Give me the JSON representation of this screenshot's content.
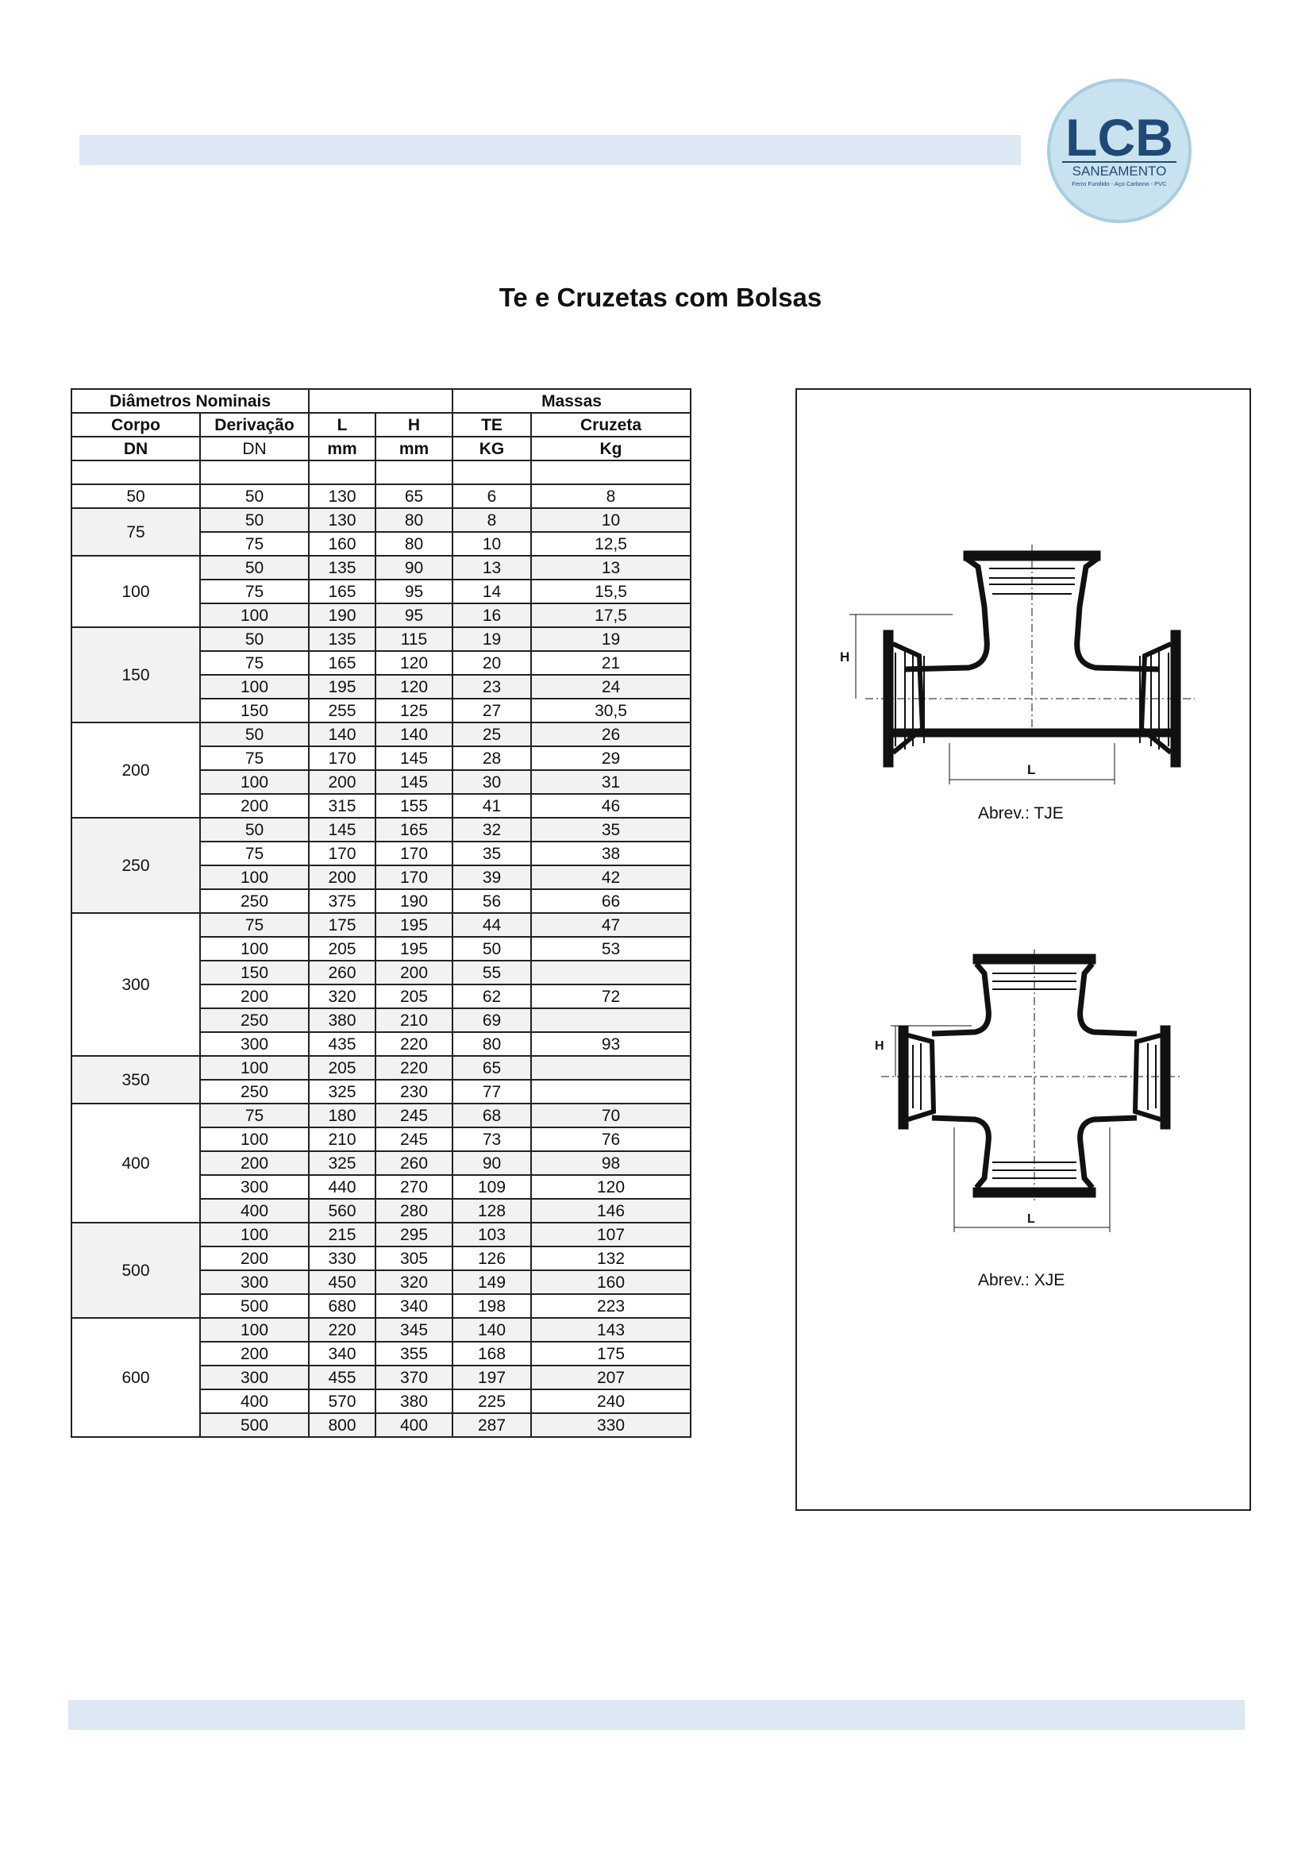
{
  "title": "Te e Cruzetas com Bolsas",
  "logo": {
    "text": "LCB",
    "subtitle": "SANEAMENTO",
    "tagline": "Ferro Fundido - Aço Carbono - PVC",
    "ring_color": "#a9cde0",
    "fill_color": "#c9e2ef",
    "text_color": "#1f4a78"
  },
  "colors": {
    "band": "#dde8f5",
    "row_shade": "#f2f2f2"
  },
  "table": {
    "header_row1": {
      "diametros": "Diâmetros Nominais",
      "massas": "Massas"
    },
    "header_row2": {
      "corpo": "Corpo",
      "derivacao": "Derivação",
      "l": "L",
      "h": "H",
      "te": "TE",
      "cruzeta": "Cruzeta"
    },
    "header_row3": {
      "corpo_unit": "DN",
      "derivacao_unit": "DN",
      "l_unit": "mm",
      "h_unit": "mm",
      "te_unit": "KG",
      "cruzeta_unit": "Kg"
    },
    "groups": [
      {
        "dn": "50",
        "rows": [
          [
            "50",
            "130",
            "65",
            "6",
            "8"
          ]
        ]
      },
      {
        "dn": "75",
        "rows": [
          [
            "50",
            "130",
            "80",
            "8",
            "10"
          ],
          [
            "75",
            "160",
            "80",
            "10",
            "12,5"
          ]
        ]
      },
      {
        "dn": "100",
        "rows": [
          [
            "50",
            "135",
            "90",
            "13",
            "13"
          ],
          [
            "75",
            "165",
            "95",
            "14",
            "15,5"
          ],
          [
            "100",
            "190",
            "95",
            "16",
            "17,5"
          ]
        ]
      },
      {
        "dn": "150",
        "rows": [
          [
            "50",
            "135",
            "115",
            "19",
            "19"
          ],
          [
            "75",
            "165",
            "120",
            "20",
            "21"
          ],
          [
            "100",
            "195",
            "120",
            "23",
            "24"
          ],
          [
            "150",
            "255",
            "125",
            "27",
            "30,5"
          ]
        ]
      },
      {
        "dn": "200",
        "rows": [
          [
            "50",
            "140",
            "140",
            "25",
            "26"
          ],
          [
            "75",
            "170",
            "145",
            "28",
            "29"
          ],
          [
            "100",
            "200",
            "145",
            "30",
            "31"
          ],
          [
            "200",
            "315",
            "155",
            "41",
            "46"
          ]
        ]
      },
      {
        "dn": "250",
        "rows": [
          [
            "50",
            "145",
            "165",
            "32",
            "35"
          ],
          [
            "75",
            "170",
            "170",
            "35",
            "38"
          ],
          [
            "100",
            "200",
            "170",
            "39",
            "42"
          ],
          [
            "250",
            "375",
            "190",
            "56",
            "66"
          ]
        ]
      },
      {
        "dn": "300",
        "rows": [
          [
            "75",
            "175",
            "195",
            "44",
            "47"
          ],
          [
            "100",
            "205",
            "195",
            "50",
            "53"
          ],
          [
            "150",
            "260",
            "200",
            "55",
            ""
          ],
          [
            "200",
            "320",
            "205",
            "62",
            "72"
          ],
          [
            "250",
            "380",
            "210",
            "69",
            ""
          ],
          [
            "300",
            "435",
            "220",
            "80",
            "93"
          ]
        ]
      },
      {
        "dn": "350",
        "rows": [
          [
            "100",
            "205",
            "220",
            "65",
            ""
          ],
          [
            "250",
            "325",
            "230",
            "77",
            ""
          ]
        ]
      },
      {
        "dn": "400",
        "rows": [
          [
            "75",
            "180",
            "245",
            "68",
            "70"
          ],
          [
            "100",
            "210",
            "245",
            "73",
            "76"
          ],
          [
            "200",
            "325",
            "260",
            "90",
            "98"
          ],
          [
            "300",
            "440",
            "270",
            "109",
            "120"
          ],
          [
            "400",
            "560",
            "280",
            "128",
            "146"
          ]
        ]
      },
      {
        "dn": "500",
        "rows": [
          [
            "100",
            "215",
            "295",
            "103",
            "107"
          ],
          [
            "200",
            "330",
            "305",
            "126",
            "132"
          ],
          [
            "300",
            "450",
            "320",
            "149",
            "160"
          ],
          [
            "500",
            "680",
            "340",
            "198",
            "223"
          ]
        ]
      },
      {
        "dn": "600",
        "rows": [
          [
            "100",
            "220",
            "345",
            "140",
            "143"
          ],
          [
            "200",
            "340",
            "355",
            "168",
            "175"
          ],
          [
            "300",
            "455",
            "370",
            "197",
            "207"
          ],
          [
            "400",
            "570",
            "380",
            "225",
            "240"
          ],
          [
            "500",
            "800",
            "400",
            "287",
            "330"
          ]
        ]
      }
    ]
  },
  "figures": {
    "tje": {
      "caption": "Abrev.: TJE",
      "h_label": "H",
      "l_label": "L"
    },
    "xje": {
      "caption": "Abrev.: XJE",
      "h_label": "H",
      "l_label": "L"
    }
  }
}
